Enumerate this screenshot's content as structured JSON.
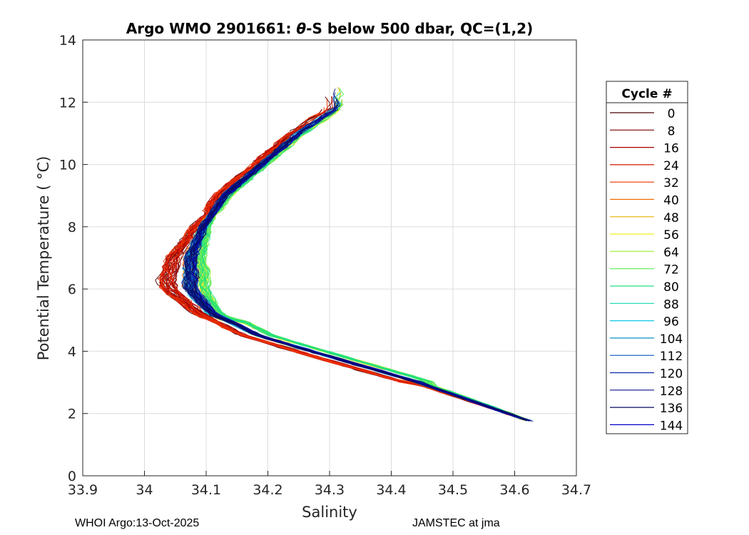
{
  "chart_data": {
    "type": "line",
    "title": "Argo WMO 2901661: θ-S below 500 dbar,  QC=(1,2)",
    "title_parts": {
      "prefix": "Argo WMO 2901661: ",
      "theta": "θ",
      "suffix": "-S below 500 dbar,  QC=(1,2)"
    },
    "xlabel": "Salinity",
    "ylabel": "Potential Temperature ( °C)",
    "xlim": [
      33.9,
      34.7
    ],
    "ylim": [
      0,
      14
    ],
    "xticks": [
      33.9,
      34.0,
      34.1,
      34.2,
      34.3,
      34.4,
      34.5,
      34.6,
      34.7
    ],
    "xtick_labels": [
      "33.9",
      "34",
      "34.1",
      "34.2",
      "34.3",
      "34.4",
      "34.5",
      "34.6",
      "34.7"
    ],
    "yticks": [
      0,
      2,
      4,
      6,
      8,
      10,
      12,
      14
    ],
    "ytick_labels": [
      "0",
      "2",
      "4",
      "6",
      "8",
      "10",
      "12",
      "14"
    ],
    "grid": true,
    "legend": {
      "title": "Cycle #",
      "placement": "right-outside",
      "entries": [
        {
          "label": "0",
          "color": "#4a0000"
        },
        {
          "label": "8",
          "color": "#7a0000"
        },
        {
          "label": "16",
          "color": "#a80000"
        },
        {
          "label": "24",
          "color": "#d41500"
        },
        {
          "label": "32",
          "color": "#ee3300"
        },
        {
          "label": "40",
          "color": "#f06a00"
        },
        {
          "label": "48",
          "color": "#e8b000"
        },
        {
          "label": "56",
          "color": "#f0f020"
        },
        {
          "label": "64",
          "color": "#a6f040"
        },
        {
          "label": "72",
          "color": "#55ee55"
        },
        {
          "label": "80",
          "color": "#22e080"
        },
        {
          "label": "88",
          "color": "#10d8b0"
        },
        {
          "label": "96",
          "color": "#10c8e8"
        },
        {
          "label": "104",
          "color": "#0a90c8"
        },
        {
          "label": "112",
          "color": "#0a55c0"
        },
        {
          "label": "120",
          "color": "#0a28a8"
        },
        {
          "label": "128",
          "color": "#081488"
        },
        {
          "label": "136",
          "color": "#0a0a60"
        },
        {
          "label": "144",
          "color": "#0000c8"
        }
      ]
    },
    "profile_shape": {
      "description_points": [
        {
          "S": 34.625,
          "T": 1.75
        },
        {
          "S": 34.56,
          "T": 2.2
        },
        {
          "S": 34.44,
          "T": 3.0
        },
        {
          "S": 34.3,
          "T": 3.8
        },
        {
          "S": 34.18,
          "T": 4.5
        },
        {
          "S": 34.11,
          "T": 5.2
        },
        {
          "S": 34.075,
          "T": 6.0
        },
        {
          "S": 34.075,
          "T": 7.0
        },
        {
          "S": 34.095,
          "T": 8.0
        },
        {
          "S": 34.13,
          "T": 9.0
        },
        {
          "S": 34.19,
          "T": 10.0
        },
        {
          "S": 34.25,
          "T": 11.0
        },
        {
          "S": 34.31,
          "T": 11.8
        }
      ]
    }
  },
  "footer": {
    "left": "WHOI Argo:13-Oct-2025",
    "right": "JAMSTEC at jma"
  }
}
